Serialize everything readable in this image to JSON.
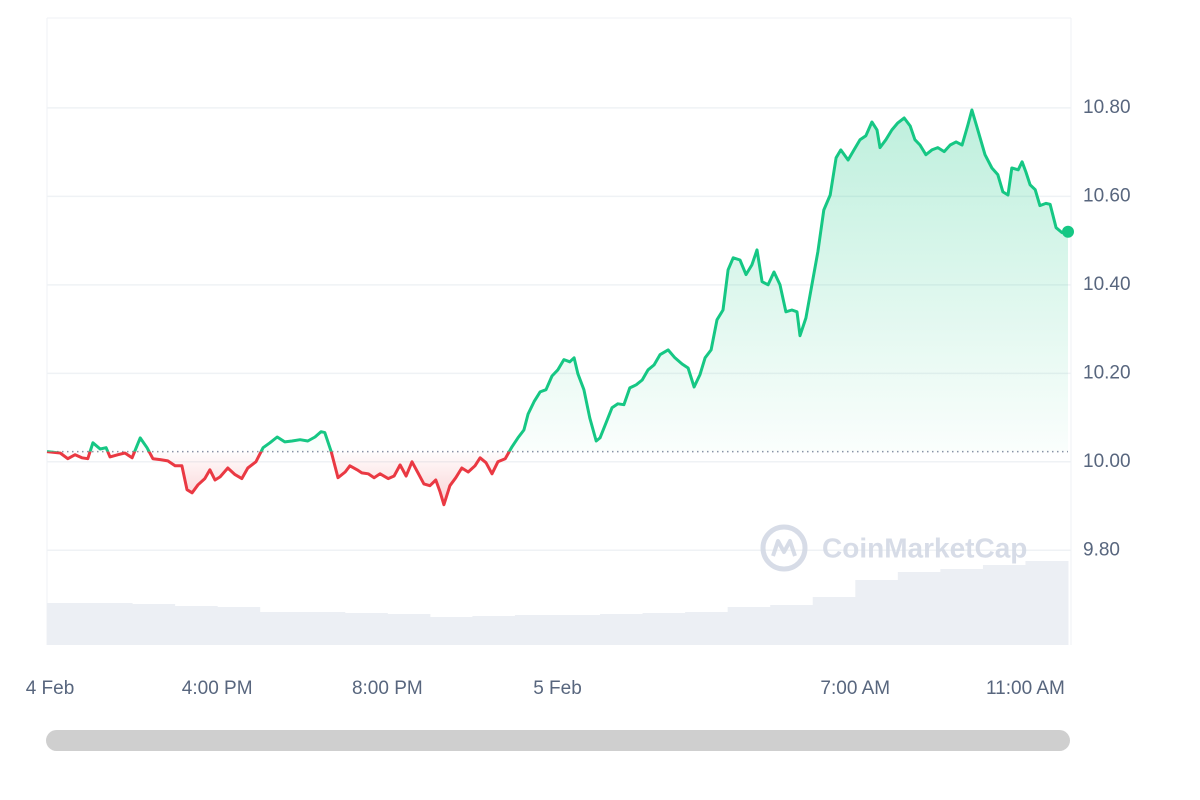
{
  "chart_data": {
    "type": "line",
    "watermark": "CoinMarketCap",
    "xlim": [
      0,
      24
    ],
    "xticks": [
      {
        "value": 0,
        "label": "4 Feb"
      },
      {
        "value": 4,
        "label": "4:00 PM"
      },
      {
        "value": 8,
        "label": "8:00 PM"
      },
      {
        "value": 12,
        "label": "5 Feb"
      },
      {
        "value": 19,
        "label": "7:00 AM"
      },
      {
        "value": 23,
        "label": "11:00 AM"
      }
    ],
    "ylim": [
      9.586,
      11.003
    ],
    "yticks": [
      {
        "value": 9.8,
        "label": "9.80"
      },
      {
        "value": 10,
        "label": "10.00"
      },
      {
        "value": 10.2,
        "label": "10.20"
      },
      {
        "value": 10.4,
        "label": "10.40"
      },
      {
        "value": 10.6,
        "label": "10.60"
      },
      {
        "value": 10.8,
        "label": "10.80"
      }
    ],
    "grid": true,
    "baseline": 10.023,
    "up_color": "#16c784",
    "down_color": "#ea3943",
    "series": [
      {
        "x": [
          0.0,
          0.31,
          0.49,
          0.66,
          0.82,
          0.96,
          1.08,
          1.25,
          1.39,
          1.48,
          1.67,
          1.83,
          2.0,
          2.19,
          2.35,
          2.49,
          2.66,
          2.84,
          3.01,
          3.17,
          3.29,
          3.41,
          3.55,
          3.71,
          3.83,
          3.95,
          4.07,
          4.25,
          4.42,
          4.58,
          4.72,
          4.91,
          5.08,
          5.24,
          5.41,
          5.59,
          5.76,
          5.95,
          6.13,
          6.3,
          6.44,
          6.53,
          6.68,
          6.84,
          7.01,
          7.12,
          7.29,
          7.4,
          7.55,
          7.69,
          7.83,
          8.02,
          8.16,
          8.3,
          8.44,
          8.58,
          8.72,
          8.86,
          9.0,
          9.14,
          9.24,
          9.33,
          9.47,
          9.61,
          9.75,
          9.9,
          10.06,
          10.18,
          10.32,
          10.46,
          10.6,
          10.77,
          10.93,
          11.07,
          11.21,
          11.31,
          11.45,
          11.59,
          11.73,
          11.87,
          12.01,
          12.15,
          12.29,
          12.39,
          12.48,
          12.62,
          12.76,
          12.91,
          13.0,
          13.14,
          13.28,
          13.42,
          13.56,
          13.7,
          13.85,
          13.99,
          14.13,
          14.27,
          14.41,
          14.6,
          14.76,
          14.93,
          15.07,
          15.21,
          15.35,
          15.47,
          15.61,
          15.75,
          15.89,
          16.01,
          16.13,
          16.29,
          16.43,
          16.57,
          16.69,
          16.81,
          16.95,
          17.09,
          17.23,
          17.37,
          17.51,
          17.63,
          17.7,
          17.84,
          17.98,
          18.12,
          18.26,
          18.41,
          18.55,
          18.66,
          18.83,
          18.97,
          19.11,
          19.25,
          19.39,
          19.51,
          19.58,
          19.72,
          19.86,
          20.0,
          20.15,
          20.29,
          20.4,
          20.52,
          20.66,
          20.8,
          20.94,
          21.09,
          21.23,
          21.37,
          21.51,
          21.65,
          21.74,
          21.88,
          22.05,
          22.21,
          22.35,
          22.47,
          22.59,
          22.68,
          22.83,
          22.92,
          23.01,
          23.11,
          23.23,
          23.34,
          23.48,
          23.58,
          23.72,
          23.86,
          24.0
        ],
        "values": [
          10.023,
          10.02,
          10.007,
          10.016,
          10.009,
          10.007,
          10.043,
          10.029,
          10.032,
          10.011,
          10.016,
          10.02,
          10.009,
          10.054,
          10.032,
          10.007,
          10.005,
          10.002,
          9.991,
          9.991,
          9.937,
          9.93,
          9.948,
          9.962,
          9.982,
          9.959,
          9.966,
          9.986,
          9.971,
          9.962,
          9.986,
          10.0,
          10.032,
          10.043,
          10.056,
          10.045,
          10.047,
          10.05,
          10.047,
          10.056,
          10.068,
          10.066,
          10.023,
          9.964,
          9.977,
          9.991,
          9.982,
          9.975,
          9.973,
          9.964,
          9.973,
          9.962,
          9.968,
          9.993,
          9.968,
          10.0,
          9.975,
          9.95,
          9.946,
          9.959,
          9.932,
          9.903,
          9.946,
          9.964,
          9.986,
          9.977,
          9.991,
          10.009,
          9.998,
          9.973,
          10.0,
          10.007,
          10.034,
          10.054,
          10.072,
          10.108,
          10.136,
          10.158,
          10.163,
          10.194,
          10.208,
          10.231,
          10.226,
          10.235,
          10.199,
          10.163,
          10.099,
          10.047,
          10.054,
          10.088,
          10.122,
          10.131,
          10.129,
          10.167,
          10.174,
          10.185,
          10.208,
          10.219,
          10.242,
          10.253,
          10.235,
          10.221,
          10.212,
          10.169,
          10.197,
          10.235,
          10.253,
          10.321,
          10.343,
          10.434,
          10.461,
          10.456,
          10.423,
          10.445,
          10.479,
          10.407,
          10.4,
          10.429,
          10.4,
          10.339,
          10.343,
          10.339,
          10.285,
          10.325,
          10.4,
          10.475,
          10.569,
          10.603,
          10.687,
          10.705,
          10.682,
          10.705,
          10.728,
          10.737,
          10.768,
          10.75,
          10.71,
          10.728,
          10.75,
          10.766,
          10.777,
          10.759,
          10.728,
          10.716,
          10.694,
          10.705,
          10.71,
          10.701,
          10.716,
          10.723,
          10.716,
          10.762,
          10.795,
          10.75,
          10.694,
          10.664,
          10.649,
          10.61,
          10.603,
          10.664,
          10.66,
          10.678,
          10.655,
          10.626,
          10.615,
          10.579,
          10.584,
          10.582,
          10.529,
          10.518,
          10.52
        ]
      }
    ],
    "volume": {
      "color": "#eceff4",
      "vlim": [
        0,
        100
      ],
      "values": [
        42,
        42,
        41,
        39,
        38,
        33,
        33,
        32,
        31,
        28,
        29,
        30,
        30,
        31,
        32,
        33,
        38,
        40,
        48,
        65,
        73,
        76,
        80,
        84
      ]
    }
  }
}
